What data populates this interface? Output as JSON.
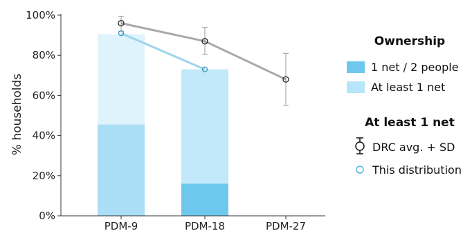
{
  "chart_data": {
    "type": "bar",
    "categories": [
      "PDM-9",
      "PDM-18",
      "PDM-27"
    ],
    "ylabel": "% households",
    "xlabel": "",
    "title": "",
    "ylim": [
      0,
      100
    ],
    "yticks": [
      "0%",
      "20%",
      "40%",
      "60%",
      "80%",
      "100%"
    ],
    "grid": false,
    "bars": {
      "at_least_1_net": [
        90.5,
        73,
        null
      ],
      "one_net_two_people": [
        45.5,
        16,
        null
      ]
    },
    "bar_colors": {
      "pdm9_light": "#dff3fd",
      "pdm9_dark": "#a9def6",
      "pdm18_light": "#c2e9fa",
      "pdm18_dark": "#6ec8ee"
    },
    "drc_avg": {
      "values": [
        96,
        87,
        68
      ],
      "sd_low": [
        92,
        80.5,
        55
      ],
      "sd_high": [
        99.5,
        94,
        81
      ],
      "color": "#a9a9a9"
    },
    "this_distribution": {
      "values": [
        91,
        73,
        null
      ],
      "color": "#9fd4ec"
    },
    "legend": {
      "title1": "Ownership",
      "item1": "1 net / 2 people",
      "item1_color": "#6ec8ee",
      "item2": "At least 1 net",
      "item2_color": "#b7e5fa",
      "title2": "At least 1 net",
      "item3": "DRC avg. + SD",
      "item4": "This distribution",
      "item4_color": "#4fb6dd"
    }
  }
}
